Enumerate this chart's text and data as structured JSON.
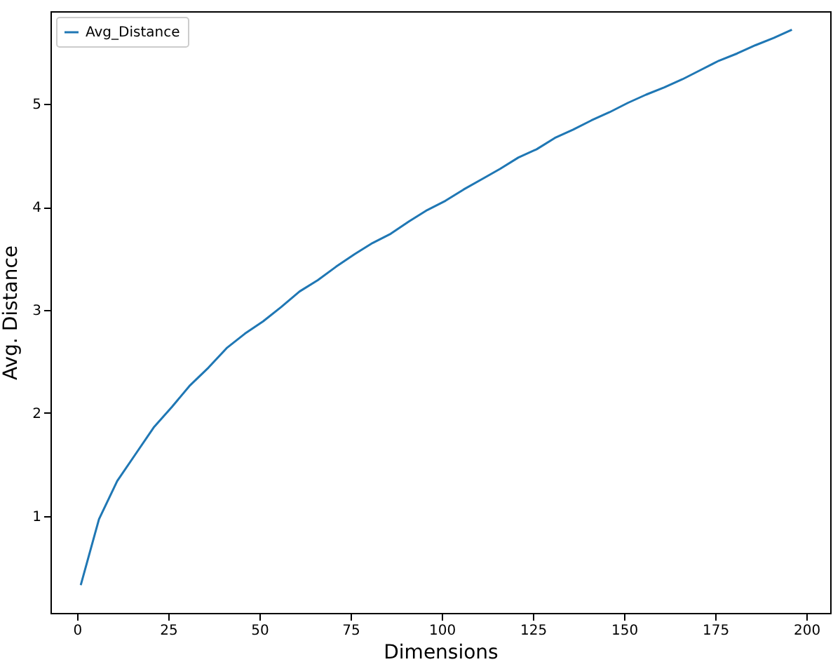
{
  "chart_data": {
    "type": "line",
    "xlabel": "Dimensions",
    "ylabel": "Avg. Distance",
    "x": [
      1,
      6,
      11,
      16,
      21,
      26,
      31,
      36,
      41,
      46,
      51,
      56,
      61,
      66,
      71,
      76,
      81,
      86,
      91,
      96,
      101,
      106,
      111,
      116,
      121,
      126,
      131,
      136,
      141,
      146,
      151,
      156,
      161,
      166,
      171,
      176,
      181,
      186,
      191,
      196
    ],
    "series": [
      {
        "name": "Avg_Distance",
        "color": "#1f77b4",
        "values": [
          0.33,
          0.97,
          1.34,
          1.6,
          1.86,
          2.06,
          2.27,
          2.44,
          2.63,
          2.77,
          2.89,
          3.03,
          3.18,
          3.29,
          3.42,
          3.54,
          3.65,
          3.74,
          3.86,
          3.97,
          4.06,
          4.17,
          4.27,
          4.37,
          4.48,
          4.56,
          4.67,
          4.75,
          4.84,
          4.92,
          5.01,
          5.09,
          5.16,
          5.24,
          5.33,
          5.42,
          5.49,
          5.57,
          5.64,
          5.72
        ]
      }
    ],
    "xlim": [
      -7.3,
      206.5
    ],
    "ylim": [
      0.06,
      5.9
    ],
    "xticks": [
      0,
      25,
      50,
      75,
      100,
      125,
      150,
      175,
      200
    ],
    "yticks": [
      1,
      2,
      3,
      4,
      5
    ],
    "legend": "top left",
    "grid": false
  }
}
